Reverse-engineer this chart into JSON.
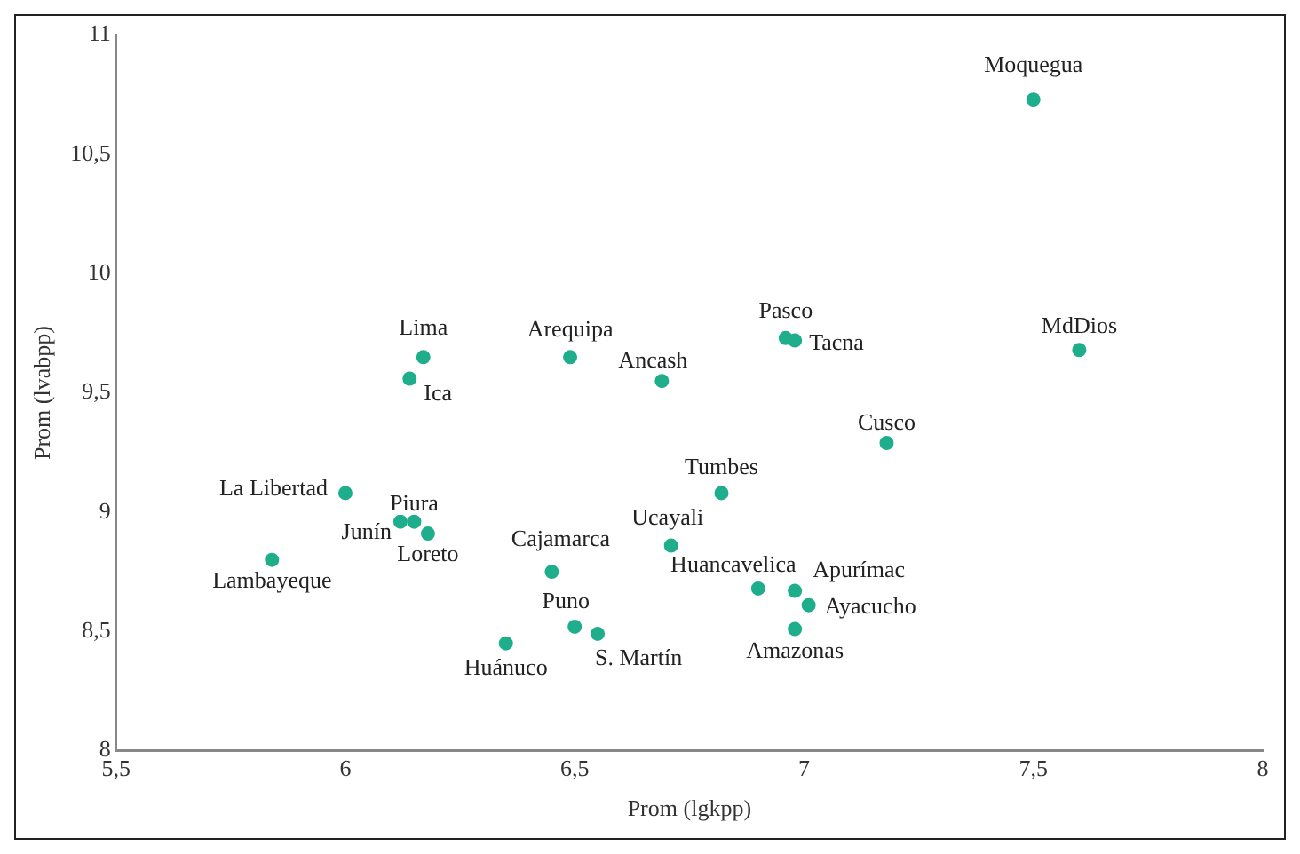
{
  "chart_data": {
    "type": "scatter",
    "xlabel": "Prom (lgkpp)",
    "ylabel": "Prom (lvabpp)",
    "xlim": [
      5.5,
      8
    ],
    "xticks": [
      {
        "value": 5.5,
        "label": "5,5"
      },
      6,
      {
        "value": 6.5,
        "label": "6,5"
      },
      7,
      {
        "value": 7.5,
        "label": "7,5"
      },
      8
    ],
    "ylim": [
      8,
      11
    ],
    "yticks": [
      8,
      {
        "value": 8.5,
        "label": "8,5"
      },
      9,
      {
        "value": 9.5,
        "label": "9,5"
      },
      10,
      {
        "value": 10.5,
        "label": "10,5"
      },
      11
    ],
    "grid": false,
    "legend": false,
    "marker": "circle",
    "series": [
      {
        "color": "#1fae8c",
        "x": [
          7.5,
          7.6,
          6.96,
          6.98,
          7.18,
          6.69,
          6.49,
          6.17,
          6.14,
          6.82,
          6.71,
          6.0,
          6.15,
          6.12,
          6.18,
          5.84,
          6.45,
          6.5,
          6.55,
          6.35,
          6.9,
          6.98,
          7.01,
          6.98
        ],
        "values": [
          10.73,
          9.68,
          9.73,
          9.72,
          9.29,
          9.55,
          9.65,
          9.65,
          9.56,
          9.08,
          8.86,
          9.08,
          8.96,
          8.96,
          8.91,
          8.8,
          8.75,
          8.52,
          8.49,
          8.45,
          8.68,
          8.67,
          8.61,
          8.51
        ]
      }
    ],
    "annotations": [
      {
        "text": "Moquegua",
        "x": 7.5,
        "y": 10.73
      },
      {
        "text": "MdDios",
        "x": 7.6,
        "y": 9.68
      },
      {
        "text": "Pasco",
        "x": 6.96,
        "y": 9.73
      },
      {
        "text": "Tacna",
        "x": 6.98,
        "y": 9.72
      },
      {
        "text": "Cusco",
        "x": 7.18,
        "y": 9.29
      },
      {
        "text": "Ancash",
        "x": 6.69,
        "y": 9.55
      },
      {
        "text": "Arequipa",
        "x": 6.49,
        "y": 9.65
      },
      {
        "text": "Lima",
        "x": 6.17,
        "y": 9.65
      },
      {
        "text": "Ica",
        "x": 6.14,
        "y": 9.56
      },
      {
        "text": "Tumbes",
        "x": 6.82,
        "y": 9.08
      },
      {
        "text": "Ucayali",
        "x": 6.71,
        "y": 8.86
      },
      {
        "text": "La Libertad",
        "x": 6.0,
        "y": 9.08
      },
      {
        "text": "Piura",
        "x": 6.15,
        "y": 8.96
      },
      {
        "text": "Junín",
        "x": 6.12,
        "y": 8.96
      },
      {
        "text": "Loreto",
        "x": 6.18,
        "y": 8.91
      },
      {
        "text": "Lambayeque",
        "x": 5.84,
        "y": 8.8
      },
      {
        "text": "Cajamarca",
        "x": 6.45,
        "y": 8.75
      },
      {
        "text": "Puno",
        "x": 6.5,
        "y": 8.52
      },
      {
        "text": "S. Martín",
        "x": 6.55,
        "y": 8.49
      },
      {
        "text": "Huánuco",
        "x": 6.35,
        "y": 8.45
      },
      {
        "text": "Huancavelica",
        "x": 6.9,
        "y": 8.68
      },
      {
        "text": "Apurímac",
        "x": 6.98,
        "y": 8.67
      },
      {
        "text": "Ayacucho",
        "x": 7.01,
        "y": 8.61
      },
      {
        "text": "Amazonas",
        "x": 6.98,
        "y": 8.51
      }
    ]
  }
}
